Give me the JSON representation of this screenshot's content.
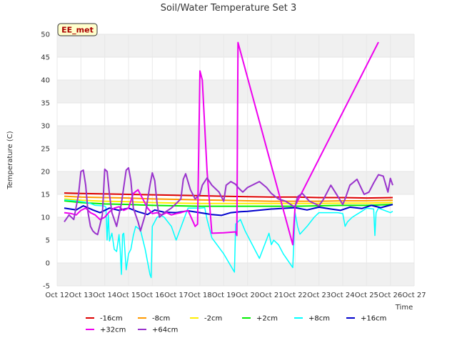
{
  "chart_data": {
    "type": "line",
    "title": "Soil/Water Temperature Set 3",
    "xlabel": "Time",
    "ylabel": "Temperature (C)",
    "annotation": "EE_met",
    "x_ticks": [
      "Oct 12",
      "Oct 13",
      "Oct 14",
      "Oct 15",
      "Oct 16",
      "Oct 17",
      "Oct 18",
      "Oct 19",
      "Oct 20",
      "Oct 21",
      "Oct 22",
      "Oct 23",
      "Oct 24",
      "Oct 25",
      "Oct 26",
      "Oct 27"
    ],
    "xlim": [
      12,
      27
    ],
    "ylim": [
      -5,
      50
    ],
    "y_ticks": [
      -5,
      0,
      5,
      10,
      15,
      20,
      25,
      30,
      35,
      40,
      45,
      50
    ],
    "series": [
      {
        "name": "-16cm",
        "color": "#dd0000",
        "width": 2,
        "x": [
          12.3,
          13,
          14,
          15,
          16,
          17,
          18,
          19,
          20,
          21,
          22,
          23,
          24,
          25,
          26.1
        ],
        "y": [
          15.3,
          15.2,
          15.1,
          15.0,
          14.9,
          14.8,
          14.7,
          14.6,
          14.5,
          14.4,
          14.4,
          14.3,
          14.3,
          14.2,
          14.3
        ]
      },
      {
        "name": "-8cm",
        "color": "#ff9900",
        "width": 2,
        "x": [
          12.3,
          13,
          14,
          15,
          16,
          17,
          18,
          19,
          20,
          21,
          22,
          23,
          24,
          25,
          26.1
        ],
        "y": [
          14.6,
          14.4,
          14.3,
          14.2,
          14.0,
          13.9,
          13.8,
          13.7,
          13.6,
          13.5,
          13.5,
          13.5,
          13.6,
          13.6,
          13.7
        ]
      },
      {
        "name": "-2cm",
        "color": "#ffee00",
        "width": 2,
        "x": [
          12.3,
          13,
          14,
          15,
          16,
          17,
          18,
          19,
          20,
          21,
          22,
          23,
          24,
          25,
          26.1
        ],
        "y": [
          14.0,
          13.7,
          13.5,
          13.4,
          13.2,
          13.1,
          13.0,
          13.0,
          13.0,
          13.0,
          13.0,
          13.0,
          13.1,
          13.1,
          13.2
        ]
      },
      {
        "name": "+2cm",
        "color": "#00ee00",
        "width": 2,
        "x": [
          12.3,
          13,
          14,
          15,
          16,
          17,
          18,
          19,
          20,
          21,
          22,
          23,
          24,
          25,
          26.1
        ],
        "y": [
          13.6,
          13.2,
          12.9,
          12.8,
          12.6,
          12.5,
          12.4,
          12.4,
          12.4,
          12.4,
          12.4,
          12.5,
          12.6,
          12.6,
          12.8
        ]
      },
      {
        "name": "+8cm",
        "color": "#00ffff",
        "width": 1.5,
        "x": [
          12.3,
          12.9,
          13.3,
          13.6,
          13.9,
          14.0,
          14.05,
          14.1,
          14.15,
          14.2,
          14.3,
          14.4,
          14.5,
          14.6,
          14.65,
          14.7,
          14.75,
          14.8,
          14.9,
          15.0,
          15.1,
          15.2,
          15.3,
          15.5,
          15.7,
          15.9,
          15.95,
          16.0,
          16.2,
          16.4,
          16.5,
          16.8,
          17.0,
          17.5,
          18.0,
          18.2,
          18.3,
          18.5,
          19.0,
          19.45,
          19.5,
          19.7,
          19.9,
          20.5,
          20.9,
          21.0,
          21.1,
          21.3,
          21.5,
          21.9,
          22.0,
          22.1,
          22.2,
          22.5,
          22.8,
          23.0,
          23.1,
          23.2,
          23.5,
          23.8,
          24.0,
          24.1,
          24.2,
          24.4,
          24.8,
          25.0,
          25.3,
          25.35,
          25.4,
          25.5,
          25.6,
          26.0,
          26.1
        ],
        "y": [
          13.8,
          13.5,
          13.2,
          12.6,
          12.5,
          12.4,
          12.2,
          5.0,
          10.5,
          4.8,
          6.5,
          3.0,
          2.5,
          6.2,
          3.0,
          -2.5,
          6.2,
          6.5,
          -1.5,
          2.0,
          3.0,
          6.0,
          8.0,
          7.2,
          3.0,
          -2.5,
          -3.2,
          8.0,
          10.0,
          10.3,
          10.0,
          8.0,
          5.0,
          12.0,
          12.0,
          12.1,
          9.5,
          5.5,
          2.0,
          -2.0,
          8.5,
          9.5,
          7.0,
          1.0,
          6.5,
          4.0,
          5.0,
          4.0,
          2.0,
          -1.0,
          11.0,
          8.0,
          6.3,
          8.0,
          10.0,
          11.0,
          11.0,
          11.0,
          11.0,
          11.0,
          10.8,
          8.0,
          9.0,
          10.0,
          11.3,
          12.0,
          11.8,
          6.0,
          11.0,
          12.0,
          11.8,
          11.0,
          11.3
        ]
      },
      {
        "name": "+16cm",
        "color": "#0000cc",
        "width": 2,
        "x": [
          12.3,
          12.8,
          13.1,
          13.5,
          13.8,
          14.2,
          14.6,
          15.0,
          15.4,
          15.8,
          16.1,
          16.5,
          17.0,
          17.5,
          18.0,
          18.5,
          18.9,
          19.3,
          19.7,
          20.0,
          21.0,
          22.0,
          22.5,
          23.0,
          23.5,
          23.9,
          24.3,
          24.8,
          25.2,
          25.6,
          26.1
        ],
        "y": [
          12.0,
          11.6,
          12.5,
          11.6,
          11.0,
          12.0,
          11.5,
          12.0,
          11.2,
          10.6,
          11.6,
          11.1,
          11.0,
          11.4,
          11.0,
          10.6,
          10.4,
          11.0,
          11.2,
          11.3,
          11.8,
          12.1,
          11.6,
          12.2,
          11.8,
          11.5,
          12.2,
          11.9,
          12.6,
          12.1,
          12.8
        ]
      },
      {
        "name": "+32cm",
        "color": "#ee00ee",
        "width": 2,
        "x": [
          12.3,
          12.6,
          12.8,
          13.0,
          13.2,
          13.4,
          13.6,
          13.8,
          14.0,
          14.2,
          14.4,
          14.6,
          14.8,
          15.0,
          15.2,
          15.4,
          15.6,
          15.8,
          16.0,
          16.2,
          16.4,
          16.6,
          16.8,
          17.0,
          17.2,
          17.5,
          17.8,
          17.9,
          18.0,
          18.1,
          18.3,
          18.5,
          19.0,
          19.5,
          19.55,
          19.6,
          21.9,
          22.0,
          25.5
        ],
        "y": [
          11.0,
          10.8,
          10.5,
          11.5,
          12.0,
          11.0,
          10.5,
          9.5,
          10.0,
          11.2,
          12.0,
          12.3,
          11.5,
          12.0,
          15.2,
          16.0,
          14.0,
          12.0,
          10.8,
          11.0,
          10.5,
          11.0,
          10.5,
          10.8,
          11.0,
          11.5,
          8.0,
          8.5,
          42.0,
          40.0,
          20.0,
          6.5,
          6.6,
          6.8,
          6.0,
          48.2,
          4.0,
          12.5,
          48.3
        ]
      },
      {
        "name": "+64cm",
        "color": "#9933cc",
        "width": 2,
        "x": [
          12.3,
          12.5,
          12.7,
          12.9,
          13.0,
          13.1,
          13.2,
          13.3,
          13.4,
          13.5,
          13.6,
          13.7,
          13.9,
          14.0,
          14.1,
          14.2,
          14.3,
          14.5,
          14.7,
          14.9,
          15.0,
          15.1,
          15.2,
          15.4,
          15.5,
          15.7,
          15.9,
          16.0,
          16.1,
          16.2,
          16.3,
          16.5,
          16.8,
          17.0,
          17.2,
          17.3,
          17.4,
          17.6,
          17.8,
          18.0,
          18.1,
          18.3,
          18.5,
          18.8,
          19.0,
          19.1,
          19.3,
          19.5,
          19.6,
          19.8,
          20.0,
          20.5,
          20.8,
          21.0,
          21.3,
          21.6,
          21.9,
          22.0,
          22.1,
          22.3,
          22.6,
          22.9,
          23.0,
          23.2,
          23.5,
          23.8,
          24.0,
          24.1,
          24.3,
          24.6,
          24.9,
          25.1,
          25.3,
          25.5,
          25.7,
          25.9,
          26.0,
          26.1
        ],
        "y": [
          9.0,
          10.5,
          9.5,
          15.0,
          20.0,
          20.3,
          17.0,
          11.0,
          8.0,
          7.0,
          6.5,
          6.2,
          10.5,
          20.5,
          20.0,
          15.0,
          11.0,
          8.0,
          13.0,
          20.3,
          20.8,
          18.0,
          12.0,
          9.0,
          7.0,
          10.5,
          17.0,
          19.7,
          18.0,
          13.0,
          10.0,
          11.0,
          12.0,
          13.0,
          14.0,
          18.3,
          19.5,
          16.0,
          14.0,
          15.0,
          17.0,
          18.6,
          17.0,
          15.5,
          13.5,
          17.0,
          17.8,
          17.2,
          16.5,
          15.5,
          16.5,
          17.8,
          16.5,
          15.2,
          14.0,
          13.5,
          12.5,
          12.2,
          14.5,
          15.2,
          13.5,
          12.8,
          12.5,
          14.0,
          17.0,
          14.5,
          12.8,
          14.0,
          17.0,
          18.3,
          15.0,
          15.5,
          17.5,
          19.3,
          19.0,
          15.5,
          18.5,
          17.0
        ]
      }
    ],
    "legend": [
      "-16cm",
      "-8cm",
      "-2cm",
      "+2cm",
      "+8cm",
      "+16cm",
      "+32cm",
      "+64cm"
    ],
    "legend_position": "bottom"
  }
}
